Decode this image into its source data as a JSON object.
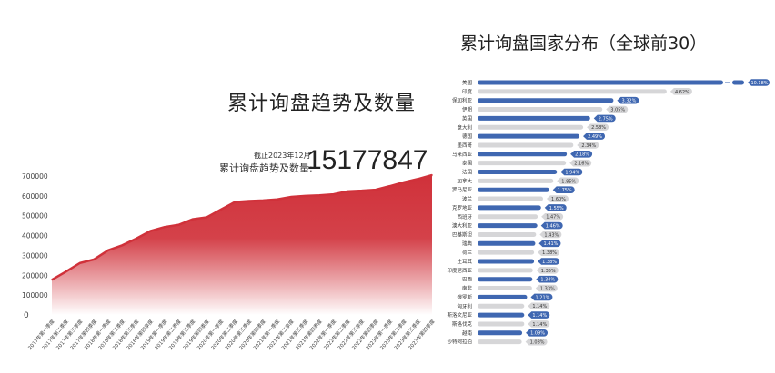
{
  "left": {
    "title": "累计询盘趋势及数量",
    "as_of": "截止2023年12月",
    "total_label": "累计询盘趋势及数量:",
    "total_value": "15177847"
  },
  "right": {
    "title": "累计询盘国家分布（全球前30）"
  },
  "chart_data": [
    {
      "type": "area",
      "title": "",
      "ylim": [
        0,
        700000
      ],
      "y_ticks": [
        "0",
        "100000",
        "200000",
        "300000",
        "400000",
        "500000",
        "600000",
        "700000"
      ],
      "grid": false,
      "colors": {
        "line": "#d0313a",
        "fill_top": "#d0313a",
        "fill_bottom": "#ffffff"
      },
      "categories": [
        "2017年第一季度",
        "2017年第二季度",
        "2017年第三季度",
        "2017年第四季度",
        "2018年第一季度",
        "2018年第二季度",
        "2018年第三季度",
        "2018年第四季度",
        "2019年第一季度",
        "2019年第二季度",
        "2019年第三季度",
        "2019年第四季度",
        "2020年第一季度",
        "2020年第二季度",
        "2020年第三季度",
        "2020年第四季度",
        "2021年第一季度",
        "2021年第二季度",
        "2021年第三季度",
        "2021年第四季度",
        "2022年第一季度",
        "2022年第二季度",
        "2022年第三季度",
        "2022年第四季度",
        "2023年第一季度",
        "2023年第二季度",
        "2023年第三季度",
        "2023年第四季度"
      ],
      "values": [
        177000,
        218000,
        262000,
        280000,
        326000,
        351000,
        385000,
        423000,
        443000,
        454000,
        482000,
        492000,
        531000,
        569000,
        574000,
        577000,
        582000,
        595000,
        600000,
        603000,
        608000,
        623000,
        626000,
        631000,
        649000,
        669000,
        685000,
        705000
      ]
    },
    {
      "type": "bar",
      "orientation": "horizontal",
      "title": "累计询盘国家分布（全球前30）",
      "axis_break_on_first": true,
      "colors": {
        "highlight": "#3f67b1",
        "normal": "#d6d6d8"
      },
      "categories": [
        "美国",
        "印度",
        "保加利亚",
        "伊朗",
        "英国",
        "意大利",
        "德国",
        "墨西哥",
        "马来西亚",
        "泰国",
        "法国",
        "加拿大",
        "罗马尼亚",
        "波兰",
        "克罗地亚",
        "西班牙",
        "澳大利亚",
        "巴基斯坦",
        "瑞典",
        "荷兰",
        "土耳其",
        "印度尼西亚",
        "巴西",
        "南非",
        "俄罗斯",
        "匈牙利",
        "斯洛文尼亚",
        "斯洛伐克",
        "越南",
        "沙特阿拉伯"
      ],
      "values": [
        10.18,
        4.62,
        3.32,
        3.05,
        2.75,
        2.58,
        2.49,
        2.34,
        2.18,
        2.16,
        1.94,
        1.85,
        1.75,
        1.6,
        1.55,
        1.47,
        1.46,
        1.43,
        1.41,
        1.38,
        1.38,
        1.35,
        1.34,
        1.33,
        1.21,
        1.14,
        1.14,
        1.14,
        1.09,
        1.08
      ],
      "labels": [
        "10.18%",
        "4.62%",
        "3.32%",
        "3.05%",
        "2.75%",
        "2.58%",
        "2.49%",
        "2.34%",
        "2.18%",
        "2.16%",
        "1.94%",
        "1.85%",
        "1.75%",
        "1.60%",
        "1.55%",
        "1.47%",
        "1.46%",
        "1.43%",
        "1.41%",
        "1.38%",
        "1.38%",
        "1.35%",
        "1.34%",
        "1.33%",
        "1.21%",
        "1.14%",
        "1.14%",
        "1.14%",
        "1.09%",
        "1.08%"
      ]
    }
  ]
}
